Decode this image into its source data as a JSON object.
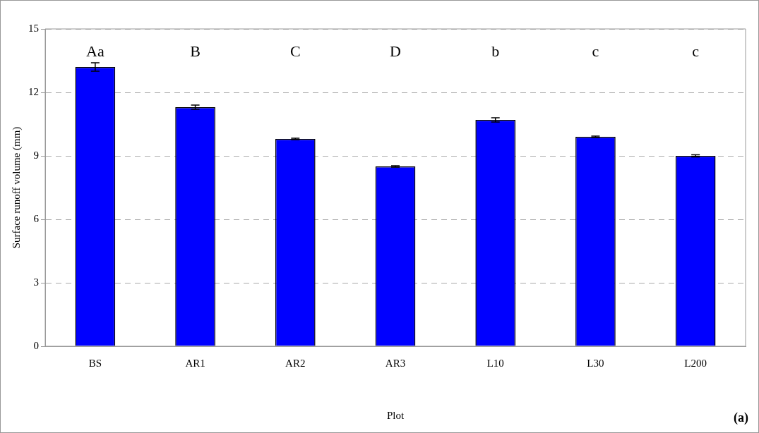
{
  "chart_data": {
    "type": "bar",
    "xlabel": "Plot",
    "ylabel": "Surface runoff volume (mm)",
    "categories": [
      "BS",
      "AR1",
      "AR2",
      "AR3",
      "L10",
      "L30",
      "L200"
    ],
    "values": [
      13.2,
      11.3,
      9.8,
      8.5,
      10.7,
      9.9,
      9.0
    ],
    "errors": [
      0.2,
      0.1,
      0.03,
      0.03,
      0.1,
      0.03,
      0.05
    ],
    "color": "#0000ff",
    "ylim": [
      0,
      15
    ],
    "yticks": [
      0,
      3,
      6,
      9,
      12,
      15
    ],
    "grid": "y",
    "annotations": [
      "Aa",
      "B",
      "C",
      "D",
      "b",
      "c",
      "c",
      "(a)"
    ]
  }
}
